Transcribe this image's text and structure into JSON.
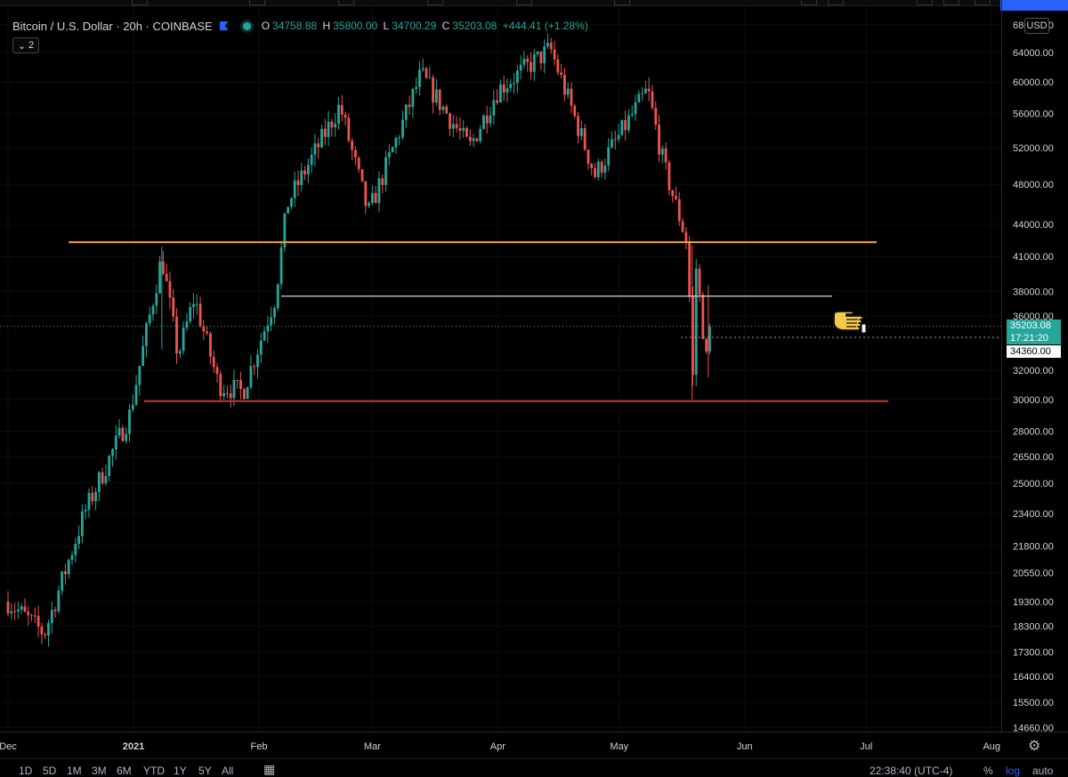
{
  "symbol": {
    "title": "Bitcoin / U.S. Dollar · 20h · COINBASE",
    "ohlc": [
      {
        "key": "O",
        "value": "34758.88"
      },
      {
        "key": "H",
        "value": "35800.00"
      },
      {
        "key": "L",
        "value": "34700.29"
      },
      {
        "key": "C",
        "value": "35203.08"
      }
    ],
    "change": "+444.41 (+1.28%)"
  },
  "indicators_toggle": {
    "count": "2"
  },
  "currency": "USD",
  "last_price": "35203.08",
  "bar_countdown": "17:21:20",
  "crosshair_price": "34360.00",
  "clock": "22:38:40 (UTC-4)",
  "scale_options": {
    "percent": "%",
    "log": "log",
    "auto": "auto"
  },
  "date_ranges": [
    "1D",
    "5D",
    "1M",
    "3M",
    "6M",
    "YTD",
    "1Y",
    "5Y",
    "All"
  ],
  "icons": {
    "indicators_toggle": "chevron-down-icon",
    "settings": "gear-icon",
    "date_range": "calendar-icon",
    "pointer": "pointing-hand-icon",
    "interval_flag": "flag-icon",
    "market_status": "status-dot-icon"
  },
  "colors": {
    "up": "#26a69a",
    "down": "#ef5350",
    "resistance_line": "#f5a623",
    "mid_line": "#d8d8d8",
    "support_line": "#c0392b",
    "accent": "#2962ff",
    "background": "#000000"
  },
  "chart_data": {
    "type": "candlestick",
    "scale": "log",
    "price_axis_labels": [
      "68000.00",
      "64000.00",
      "60000.00",
      "56000.00",
      "52000.00",
      "48000.00",
      "44000.00",
      "41000.00",
      "38000.00",
      "36000.00",
      "32000.00",
      "30000.00",
      "28000.00",
      "26500.00",
      "25000.00",
      "23400.00",
      "21800.00",
      "20550.00",
      "19300.00",
      "18300.00",
      "17300.00",
      "16400.00",
      "15500.00",
      "14660.00"
    ],
    "time_axis_labels": [
      "Dec",
      "2021",
      "Feb",
      "Mar",
      "Apr",
      "May",
      "Jun",
      "Jul",
      "Aug"
    ],
    "approx_path": [
      {
        "t": "2020-12-01",
        "p": 19300
      },
      {
        "t": "2020-12-10",
        "p": 18000
      },
      {
        "t": "2020-12-20",
        "p": 23500
      },
      {
        "t": "2020-12-31",
        "p": 29000
      },
      {
        "t": "2021-01-08",
        "p": 41000
      },
      {
        "t": "2021-01-12",
        "p": 33000
      },
      {
        "t": "2021-01-16",
        "p": 37500
      },
      {
        "t": "2021-01-22",
        "p": 31000
      },
      {
        "t": "2021-01-28",
        "p": 30500
      },
      {
        "t": "2021-02-05",
        "p": 37500
      },
      {
        "t": "2021-02-08",
        "p": 46000
      },
      {
        "t": "2021-02-21",
        "p": 57000
      },
      {
        "t": "2021-02-28",
        "p": 45000
      },
      {
        "t": "2021-03-13",
        "p": 61000
      },
      {
        "t": "2021-03-25",
        "p": 52000
      },
      {
        "t": "2021-04-01",
        "p": 59000
      },
      {
        "t": "2021-04-14",
        "p": 64500
      },
      {
        "t": "2021-04-25",
        "p": 49000
      },
      {
        "t": "2021-05-08",
        "p": 59000
      },
      {
        "t": "2021-05-12",
        "p": 50000
      },
      {
        "t": "2021-05-18",
        "p": 42000
      },
      {
        "t": "2021-05-19",
        "p": 30000
      },
      {
        "t": "2021-05-20",
        "p": 40000
      },
      {
        "t": "2021-05-23",
        "p": 31500
      },
      {
        "t": "2021-05-24",
        "p": 35203
      }
    ],
    "horizontal_levels": [
      {
        "price": 42300,
        "color": "#f5a623"
      },
      {
        "price": 37600,
        "color": "#d8d8d8"
      },
      {
        "price": 29900,
        "color": "#c0392b"
      }
    ]
  }
}
